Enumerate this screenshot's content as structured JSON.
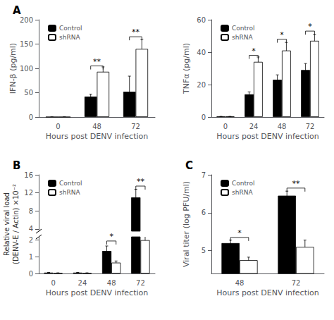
{
  "chart_data": [
    {
      "type": "bar",
      "title": "A",
      "xlabel": "Hours post DENV infection",
      "ylabel": "IFN-β (pg/ml)",
      "categories": [
        "0",
        "48",
        "72"
      ],
      "series": [
        {
          "name": "Control",
          "color": "#000000",
          "values": [
            0,
            42,
            52
          ],
          "errors": [
            0,
            5,
            32
          ]
        },
        {
          "name": "shRNA",
          "color": "#ffffff",
          "values": [
            0,
            93,
            140
          ],
          "errors": [
            0,
            10,
            20
          ]
        }
      ],
      "ylim": [
        0,
        200
      ],
      "yticks": [
        0,
        50,
        100,
        150,
        200
      ],
      "grid": false,
      "legend": "upper left",
      "annotations": [
        {
          "text": "**",
          "category": "48",
          "y": 105
        },
        {
          "text": "**",
          "category": "72",
          "y": 165
        }
      ]
    },
    {
      "type": "bar",
      "xlabel": "Hours post DENV infection",
      "ylabel": "TNFα (pg/ml)",
      "categories": [
        "0",
        "24",
        "48",
        "72"
      ],
      "series": [
        {
          "name": "Control",
          "color": "#000000",
          "values": [
            0.3,
            14,
            23,
            29
          ],
          "errors": [
            0.1,
            1.5,
            3,
            4
          ]
        },
        {
          "name": "shRNA",
          "color": "#ffffff",
          "values": [
            0.3,
            34,
            41,
            47
          ],
          "errors": [
            0.1,
            3,
            5,
            4
          ]
        }
      ],
      "ylim": [
        0,
        60
      ],
      "yticks": [
        0,
        20,
        40,
        60
      ],
      "grid": false,
      "legend": "upper left",
      "annotations": [
        {
          "text": "*",
          "category": "24",
          "y": 38
        },
        {
          "text": "*",
          "category": "48",
          "y": 48
        },
        {
          "text": "*",
          "category": "72",
          "y": 53
        }
      ]
    },
    {
      "type": "bar",
      "title": "B",
      "xlabel": "Hours post DENV infection",
      "ylabel": "Relative viral load\n(DENV-E / Actin) ×10⁻²",
      "categories": [
        "0",
        "24",
        "48",
        "72"
      ],
      "series": [
        {
          "name": "Control",
          "color": "#000000",
          "values": [
            0.05,
            0.05,
            1.35,
            11.0
          ],
          "errors": [
            0.01,
            0.01,
            0.3,
            1.8
          ]
        },
        {
          "name": "shRNA",
          "color": "#ffffff",
          "values": [
            0.03,
            0.03,
            0.65,
            2.0
          ],
          "errors": [
            0.01,
            0.01,
            0.1,
            0.3
          ]
        }
      ],
      "ylim": [
        0,
        16
      ],
      "yticks": [
        0,
        1,
        2,
        4,
        8,
        12,
        16
      ],
      "ybreak": [
        2.2,
        3.5
      ],
      "grid": false,
      "legend": "upper left",
      "annotations": [
        {
          "text": "*",
          "category": "48",
          "y": 1.95
        },
        {
          "text": "**",
          "category": "72",
          "y": 13.5
        }
      ]
    },
    {
      "type": "bar",
      "title": "C",
      "xlabel": "Hours post DENV infection",
      "ylabel": "Viral titer (log PFU/ml)",
      "categories": [
        "48",
        "72"
      ],
      "series": [
        {
          "name": "Control",
          "color": "#000000",
          "values": [
            5.2,
            6.45
          ],
          "errors": [
            0.08,
            0.12
          ]
        },
        {
          "name": "shRNA",
          "color": "#ffffff",
          "values": [
            4.75,
            5.1
          ],
          "errors": [
            0.08,
            0.18
          ]
        }
      ],
      "ylim": [
        4.4,
        7.0
      ],
      "yticks": [
        5,
        6,
        7
      ],
      "grid": false,
      "legend": "upper left",
      "annotations": [
        {
          "text": "*",
          "category": "48",
          "y": 5.35
        },
        {
          "text": "**",
          "category": "72",
          "y": 6.65
        }
      ]
    }
  ]
}
